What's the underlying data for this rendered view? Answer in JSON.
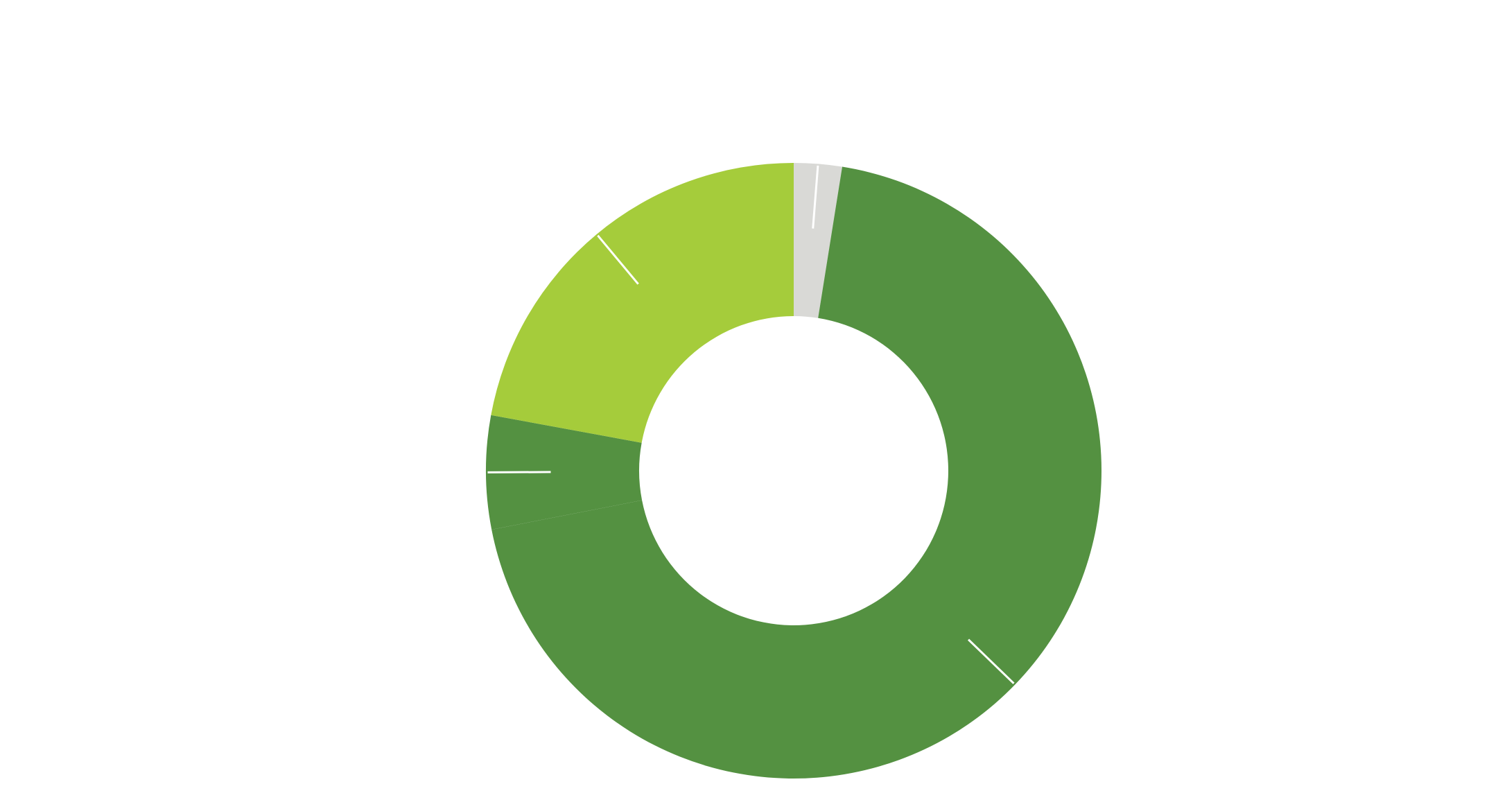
{
  "chart_data": {
    "type": "pie",
    "variant": "donut",
    "title": "",
    "legend": "none",
    "slices": [
      {
        "value": 2.2,
        "color": "#d9d9d6"
      },
      {
        "value": 60.6,
        "color": "#549141"
      },
      {
        "value": 5.2,
        "color": "#549141"
      },
      {
        "value": 19.3,
        "color": "#a5cc3b"
      }
    ]
  }
}
